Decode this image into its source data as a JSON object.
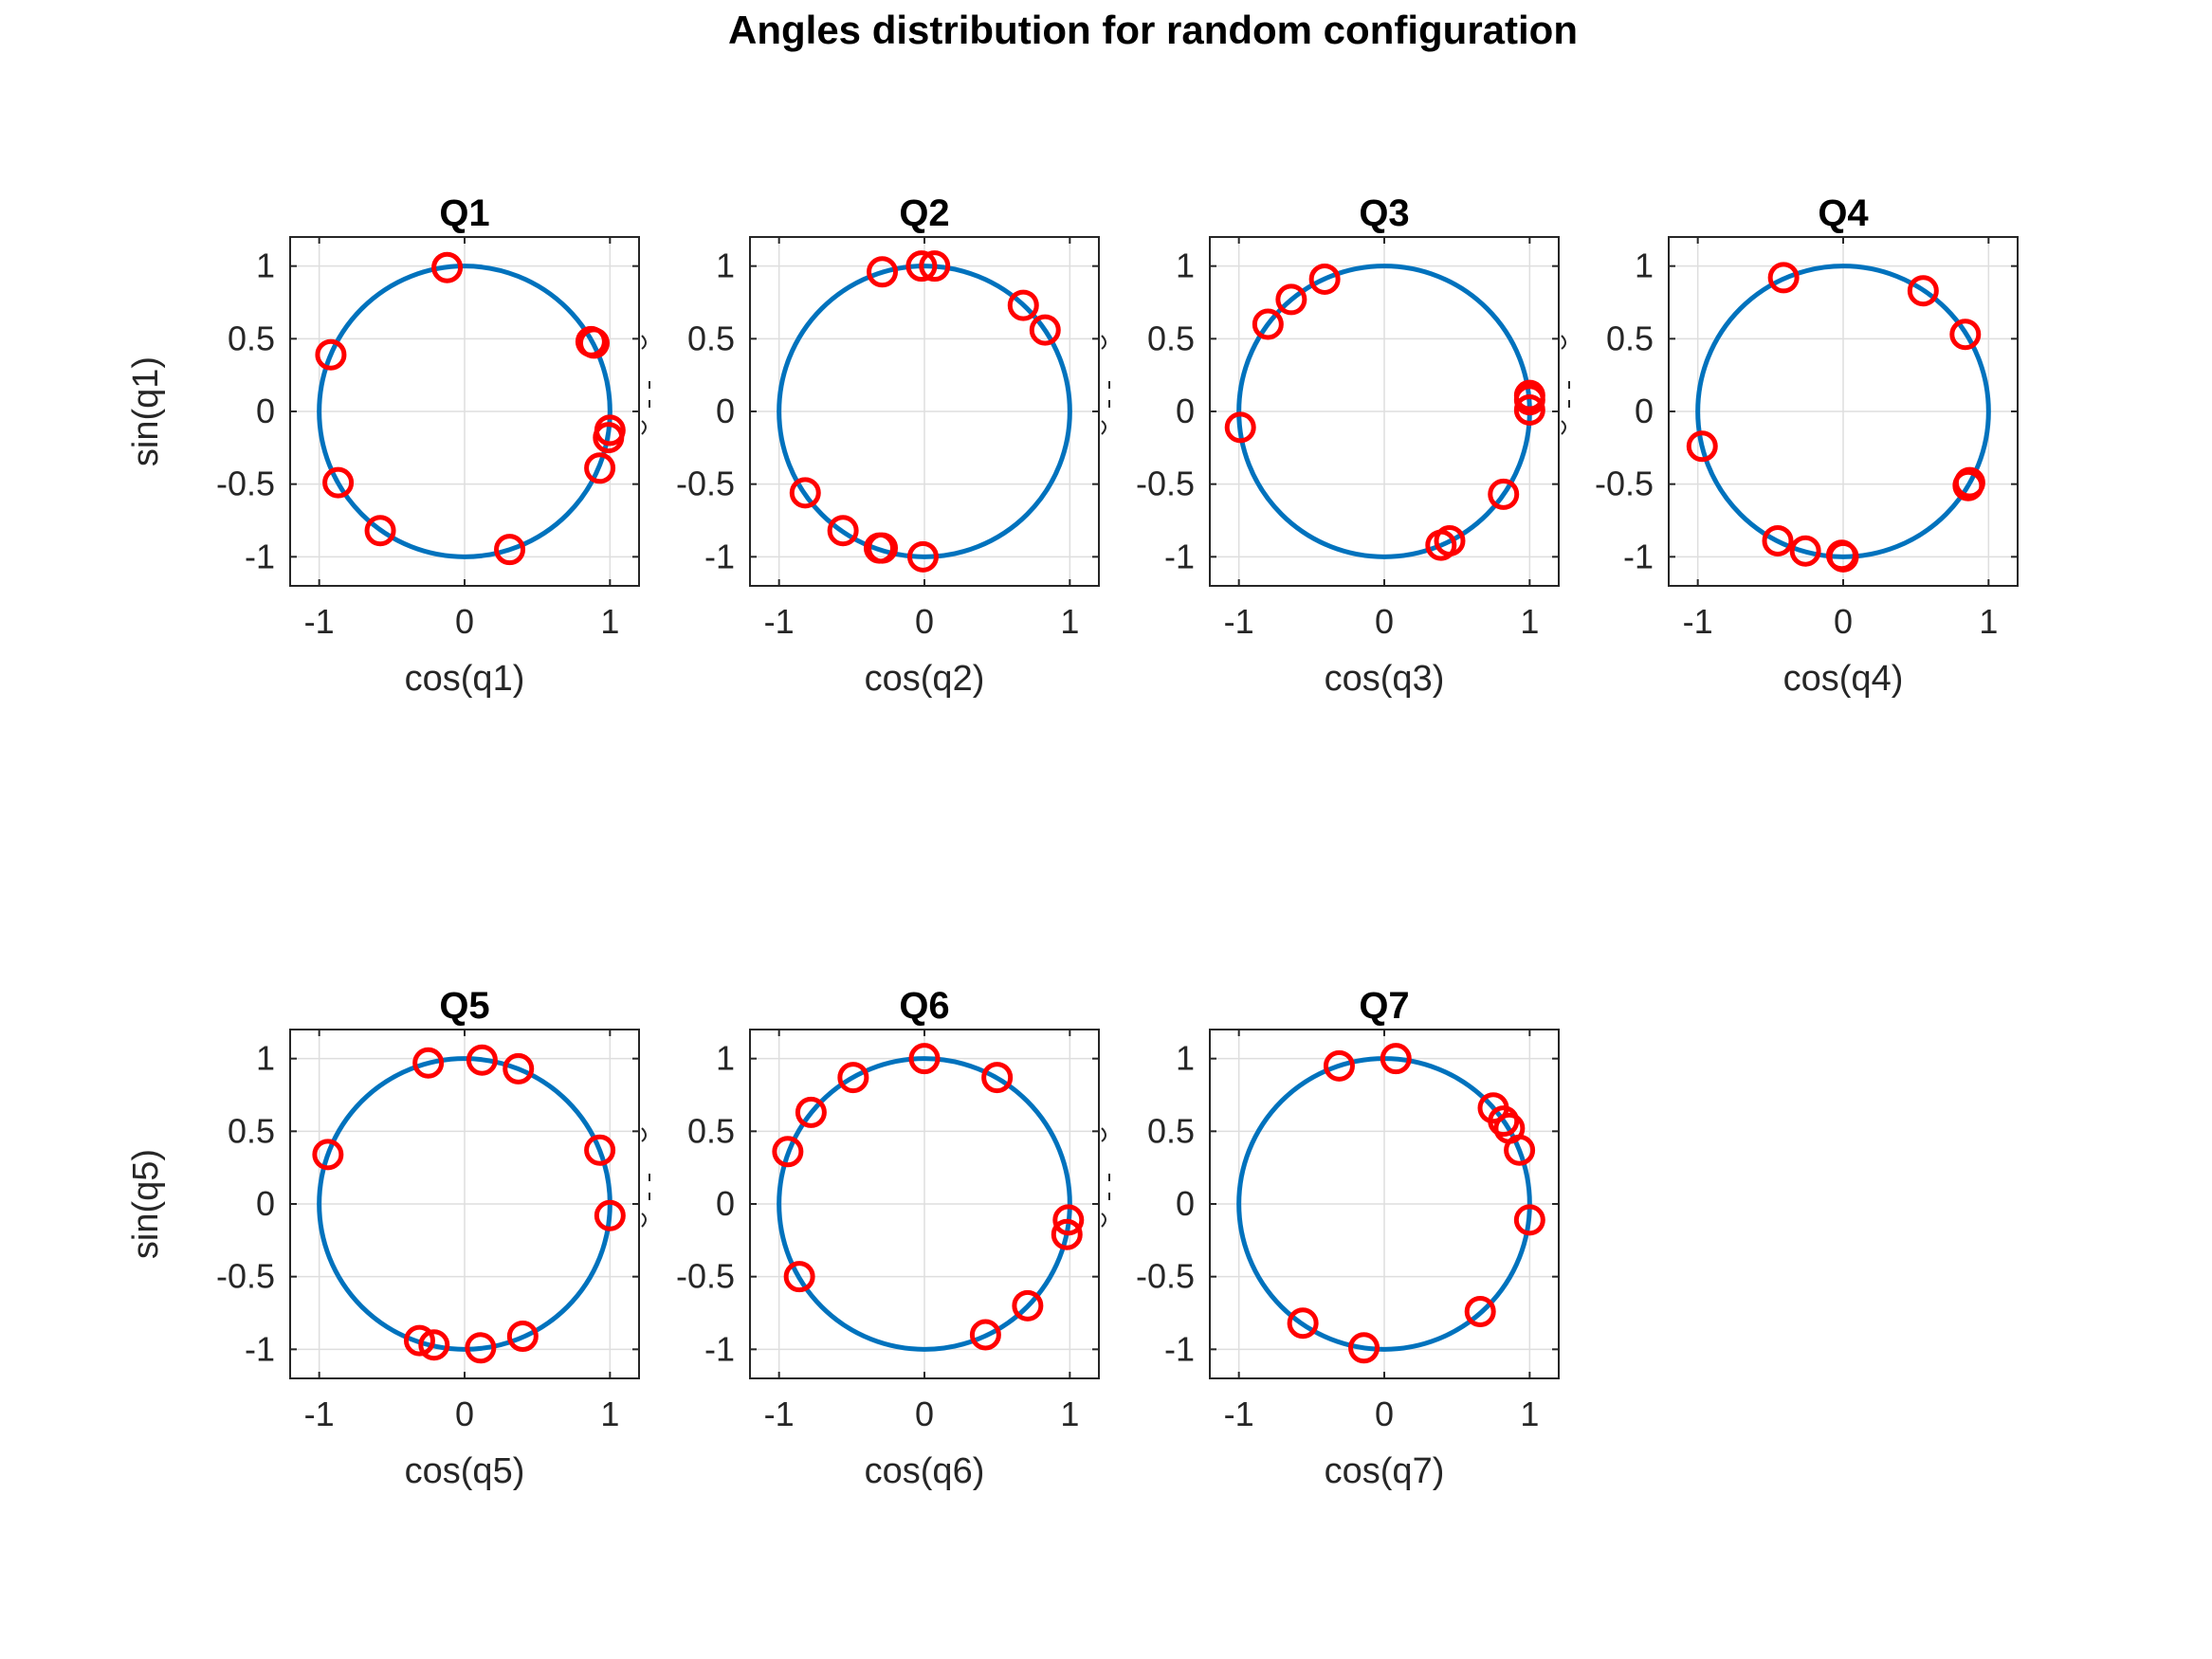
{
  "figure": {
    "title": "Angles distribution for random configuration",
    "colors": {
      "circle": "#0072BD",
      "markers": "#FF0000",
      "axes": "#262626",
      "grid": "#DEDEDE"
    }
  },
  "chart_data": [
    {
      "type": "scatter",
      "title": "Q1",
      "xlabel": "cos(q1)",
      "ylabel": "sin(q1)",
      "xlim": [
        -1.2,
        1.2
      ],
      "ylim": [
        -1.2,
        1.2
      ],
      "xticks": [
        "-1",
        "0",
        "1"
      ],
      "yticks": [
        "1",
        "0.5",
        "0",
        "-0.5",
        "-1"
      ],
      "grid": true,
      "unit_circle": true,
      "x": [
        -0.12,
        0.87,
        0.89,
        -0.92,
        1.0,
        0.99,
        0.93,
        -0.87,
        -0.58,
        0.31
      ],
      "y": [
        0.99,
        0.48,
        0.47,
        0.39,
        -0.13,
        -0.18,
        -0.39,
        -0.49,
        -0.82,
        -0.95
      ]
    },
    {
      "type": "scatter",
      "title": "Q2",
      "xlabel": "cos(q2)",
      "ylabel": "",
      "xlim": [
        -1.2,
        1.2
      ],
      "ylim": [
        -1.2,
        1.2
      ],
      "xticks": [
        "-1",
        "0",
        "1"
      ],
      "yticks": [
        "1",
        "0.5",
        "0",
        "-0.5",
        "-1"
      ],
      "grid": true,
      "unit_circle": true,
      "x": [
        -0.29,
        -0.02,
        0.07,
        0.68,
        0.83,
        -0.82,
        -0.56,
        -0.31,
        -0.29,
        -0.01
      ],
      "y": [
        0.96,
        1.0,
        1.0,
        0.73,
        0.56,
        -0.56,
        -0.82,
        -0.94,
        -0.94,
        -1.0
      ]
    },
    {
      "type": "scatter",
      "title": "Q3",
      "xlabel": "cos(q3)",
      "ylabel": "",
      "xlim": [
        -1.2,
        1.2
      ],
      "ylim": [
        -1.2,
        1.2
      ],
      "xticks": [
        "-1",
        "0",
        "1"
      ],
      "yticks": [
        "1",
        "0.5",
        "0",
        "-0.5",
        "-1"
      ],
      "grid": true,
      "unit_circle": true,
      "x": [
        -0.41,
        -0.64,
        -0.8,
        -0.99,
        1.0,
        1.0,
        1.0,
        0.82,
        0.45,
        0.39
      ],
      "y": [
        0.91,
        0.77,
        0.6,
        -0.11,
        0.11,
        0.08,
        0.01,
        -0.57,
        -0.89,
        -0.92
      ]
    },
    {
      "type": "scatter",
      "title": "Q4",
      "xlabel": "cos(q4)",
      "ylabel": "",
      "xlim": [
        -1.2,
        1.2
      ],
      "ylim": [
        -1.2,
        1.2
      ],
      "xticks": [
        "-1",
        "0",
        "1"
      ],
      "yticks": [
        "1",
        "0.5",
        "0",
        "-0.5",
        "-1"
      ],
      "grid": true,
      "unit_circle": true,
      "x": [
        -0.41,
        0.55,
        0.84,
        -0.97,
        0.87,
        0.86,
        -0.45,
        -0.26,
        -0.01,
        0.0
      ],
      "y": [
        0.92,
        0.83,
        0.53,
        -0.24,
        -0.49,
        -0.51,
        -0.89,
        -0.96,
        -0.99,
        -1.0
      ]
    },
    {
      "type": "scatter",
      "title": "Q5",
      "xlabel": "cos(q5)",
      "ylabel": "sin(q5)",
      "xlim": [
        -1.2,
        1.2
      ],
      "ylim": [
        -1.2,
        1.2
      ],
      "xticks": [
        "-1",
        "0",
        "1"
      ],
      "yticks": [
        "1",
        "0.5",
        "0",
        "-0.5",
        "-1"
      ],
      "grid": true,
      "unit_circle": true,
      "x": [
        -0.25,
        0.12,
        0.37,
        -0.94,
        0.93,
        1.0,
        -0.31,
        -0.21,
        0.11,
        0.4
      ],
      "y": [
        0.97,
        0.99,
        0.93,
        0.34,
        0.37,
        -0.08,
        -0.94,
        -0.97,
        -0.99,
        -0.91
      ]
    },
    {
      "type": "scatter",
      "title": "Q6",
      "xlabel": "cos(q6)",
      "ylabel": "",
      "xlim": [
        -1.2,
        1.2
      ],
      "ylim": [
        -1.2,
        1.2
      ],
      "xticks": [
        "-1",
        "0",
        "1"
      ],
      "yticks": [
        "1",
        "0.5",
        "0",
        "-0.5",
        "-1"
      ],
      "grid": true,
      "unit_circle": true,
      "x": [
        0.0,
        -0.49,
        0.5,
        -0.78,
        -0.94,
        0.99,
        0.98,
        -0.86,
        0.71,
        0.42
      ],
      "y": [
        1.0,
        0.87,
        0.87,
        0.63,
        0.36,
        -0.11,
        -0.21,
        -0.5,
        -0.7,
        -0.9
      ]
    },
    {
      "type": "scatter",
      "title": "Q7",
      "xlabel": "cos(q7)",
      "ylabel": "",
      "xlim": [
        -1.2,
        1.2
      ],
      "ylim": [
        -1.2,
        1.2
      ],
      "xticks": [
        "-1",
        "0",
        "1"
      ],
      "yticks": [
        "1",
        "0.5",
        "0",
        "-0.5",
        "-1"
      ],
      "grid": true,
      "unit_circle": true,
      "x": [
        -0.31,
        0.08,
        0.75,
        0.82,
        0.86,
        0.93,
        1.0,
        -0.56,
        -0.14,
        0.66
      ],
      "y": [
        0.95,
        1.0,
        0.66,
        0.57,
        0.52,
        0.37,
        -0.11,
        -0.82,
        -0.99,
        -0.74
      ]
    }
  ]
}
